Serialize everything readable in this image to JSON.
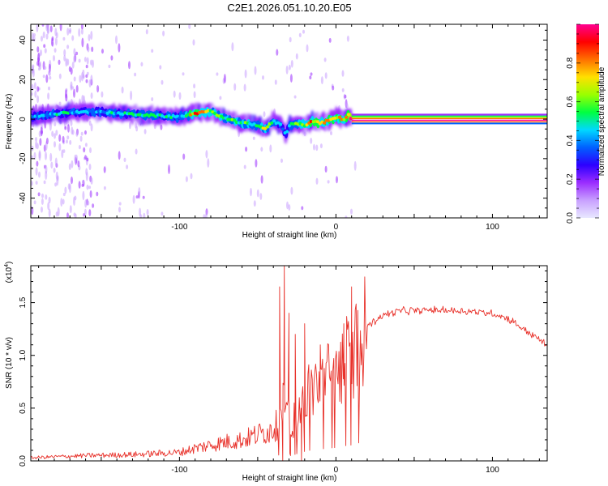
{
  "title": "C2E1.2026.051.10.20.E05",
  "colors": {
    "snr_line": "#e8312a",
    "axis": "#000000",
    "background": "#ffffff"
  },
  "chart_data": [
    {
      "type": "heatmap",
      "name": "spectrogram",
      "xlabel": "Height of straight line (km)",
      "ylabel": "Frequency (Hz)",
      "xlim": [
        -195,
        135
      ],
      "ylim": [
        -50,
        48
      ],
      "x_ticks": [
        {
          "value": -100,
          "label": "-100"
        },
        {
          "value": 0,
          "label": "0"
        },
        {
          "value": 100,
          "label": "100"
        }
      ],
      "y_ticks": [
        {
          "value": -40,
          "label": "-40"
        },
        {
          "value": -20,
          "label": "-20"
        },
        {
          "value": 0,
          "label": "0"
        },
        {
          "value": 20,
          "label": "20"
        },
        {
          "value": 40,
          "label": "40"
        }
      ],
      "ridge": {
        "x": [
          -195,
          -175,
          -160,
          -140,
          -120,
          -100,
          -90,
          -80,
          -70,
          -60,
          -50,
          -45,
          -40,
          -35,
          -32,
          -30,
          -25,
          -20,
          -15,
          -10,
          -5,
          0,
          5,
          8,
          10,
          135
        ],
        "freq": [
          1,
          3,
          4,
          3,
          2,
          1,
          3,
          4,
          0,
          -2,
          -3,
          -5,
          -1,
          -3,
          -8,
          -3,
          -2,
          -3,
          -1,
          -2,
          -1,
          1,
          0,
          2,
          0,
          0
        ],
        "amplitude": [
          0.45,
          0.5,
          0.45,
          0.5,
          0.55,
          0.5,
          0.85,
          0.7,
          0.6,
          0.6,
          0.55,
          0.7,
          0.55,
          0.5,
          0.35,
          0.5,
          0.6,
          0.7,
          0.85,
          0.75,
          0.85,
          0.75,
          0.8,
          0.9,
          1.0,
          1.0
        ]
      },
      "colorbar": {
        "label": "Normalized spectral amplitude",
        "range": [
          0.0,
          1.0
        ],
        "ticks": [
          {
            "value": 0.0,
            "label": "0.0"
          },
          {
            "value": 0.2,
            "label": "0.2"
          },
          {
            "value": 0.4,
            "label": "0.4"
          },
          {
            "value": 0.6,
            "label": "0.6"
          },
          {
            "value": 0.8,
            "label": "0.8"
          }
        ],
        "colormap": [
          "#e8e8ff",
          "#c8a0ff",
          "#9b2dff",
          "#2d00ff",
          "#0060ff",
          "#00d8ff",
          "#00ff40",
          "#9aff00",
          "#ffe000",
          "#ff7000",
          "#ff0000",
          "#ff0090"
        ]
      }
    },
    {
      "type": "line",
      "name": "snr",
      "xlabel": "Height of straight line (km)",
      "ylabel": "SNR (10 * v/v)",
      "y_scale_label": "(x10",
      "y_scale_exponent": "4",
      "xlim": [
        -195,
        135
      ],
      "ylim": [
        0,
        1.85
      ],
      "x_ticks": [
        {
          "value": -100,
          "label": "-100"
        },
        {
          "value": 0,
          "label": "0"
        },
        {
          "value": 100,
          "label": "100"
        }
      ],
      "y_ticks": [
        {
          "value": 0.0,
          "label": "0.0"
        },
        {
          "value": 0.5,
          "label": "0.5"
        },
        {
          "value": 1.0,
          "label": "1.0"
        },
        {
          "value": 1.5,
          "label": "1.5"
        }
      ],
      "envelope": {
        "x": [
          -195,
          -160,
          -130,
          -100,
          -90,
          -80,
          -70,
          -60,
          -50,
          -40,
          -35,
          -32,
          -30,
          -28,
          -25,
          -22,
          -20,
          -15,
          -10,
          -5,
          0,
          5,
          10,
          15,
          20,
          30,
          40,
          60,
          80,
          100,
          110,
          120,
          130,
          135
        ],
        "y": [
          0.03,
          0.05,
          0.06,
          0.08,
          0.12,
          0.15,
          0.18,
          0.2,
          0.25,
          0.3,
          0.4,
          0.7,
          0.5,
          0.35,
          0.45,
          0.5,
          0.6,
          0.7,
          0.75,
          0.8,
          0.85,
          0.95,
          1.0,
          1.15,
          1.28,
          1.38,
          1.42,
          1.43,
          1.42,
          1.4,
          1.35,
          1.25,
          1.15,
          1.1
        ]
      },
      "spikes": [
        {
          "x": -36,
          "y": 1.65
        },
        {
          "x": -33,
          "y": 1.85
        },
        {
          "x": -30,
          "y": 1.4
        },
        {
          "x": -26,
          "y": 1.2
        },
        {
          "x": -20,
          "y": 1.3
        },
        {
          "x": -10,
          "y": 1.1
        },
        {
          "x": 5,
          "y": 1.3
        },
        {
          "x": 10,
          "y": 1.65
        }
      ],
      "dips": [
        {
          "x": -34,
          "y": 0.0
        },
        {
          "x": -29,
          "y": 0.05
        },
        {
          "x": -22,
          "y": 0.0
        }
      ]
    }
  ]
}
